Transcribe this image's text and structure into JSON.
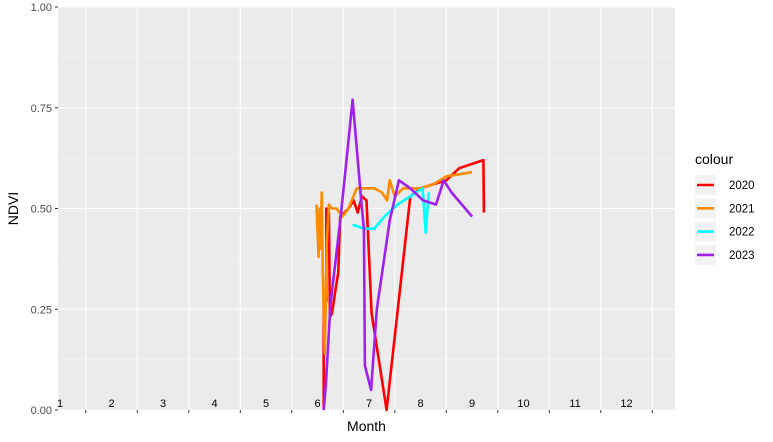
{
  "chart_data": {
    "type": "line",
    "xlabel": "Month",
    "ylabel": "NDVI",
    "xlim": [
      1,
      12
    ],
    "ylim": [
      0,
      1
    ],
    "y_ticks": [
      "0.00",
      "0.25",
      "0.50",
      "0.75",
      "1.00"
    ],
    "month_labels": [
      "1",
      "2",
      "3",
      "4",
      "5",
      "6",
      "7",
      "8",
      "9",
      "10",
      "11",
      "12"
    ],
    "grid": true,
    "legend_title": "colour",
    "legend_position": "right",
    "series": [
      {
        "name": "2020",
        "color": "#ff0000",
        "points": [
          [
            6.12,
            0.0
          ],
          [
            6.12,
            0.27
          ],
          [
            6.17,
            0.27
          ],
          [
            6.17,
            0.5
          ],
          [
            6.22,
            0.49
          ],
          [
            6.24,
            0.23
          ],
          [
            6.28,
            0.24
          ],
          [
            6.35,
            0.3
          ],
          [
            6.4,
            0.34
          ],
          [
            6.44,
            0.48
          ],
          [
            6.6,
            0.5
          ],
          [
            6.7,
            0.52
          ],
          [
            6.78,
            0.49
          ],
          [
            6.82,
            0.51
          ],
          [
            6.86,
            0.53
          ],
          [
            6.95,
            0.52
          ],
          [
            7.05,
            0.24
          ],
          [
            7.34,
            0.0
          ],
          [
            7.8,
            0.53
          ],
          [
            8.0,
            0.55
          ],
          [
            8.25,
            0.56
          ],
          [
            8.5,
            0.57
          ],
          [
            8.75,
            0.6
          ],
          [
            9.22,
            0.62
          ],
          [
            9.23,
            0.49
          ]
        ]
      },
      {
        "name": "2021",
        "color": "#ff8c00",
        "points": [
          [
            5.98,
            0.51
          ],
          [
            6.0,
            0.44
          ],
          [
            6.02,
            0.38
          ],
          [
            6.04,
            0.5
          ],
          [
            6.06,
            0.4
          ],
          [
            6.08,
            0.54
          ],
          [
            6.1,
            0.35
          ],
          [
            6.14,
            0.14
          ],
          [
            6.18,
            0.42
          ],
          [
            6.22,
            0.51
          ],
          [
            6.27,
            0.5
          ],
          [
            6.37,
            0.5
          ],
          [
            6.48,
            0.48
          ],
          [
            6.6,
            0.5
          ],
          [
            6.76,
            0.55
          ],
          [
            7.1,
            0.55
          ],
          [
            7.25,
            0.54
          ],
          [
            7.35,
            0.52
          ],
          [
            7.4,
            0.57
          ],
          [
            7.5,
            0.53
          ],
          [
            7.66,
            0.55
          ],
          [
            8.0,
            0.55
          ],
          [
            8.25,
            0.56
          ],
          [
            8.5,
            0.58
          ],
          [
            9.0,
            0.59
          ]
        ]
      },
      {
        "name": "2022",
        "color": "#00ffff",
        "points": [
          [
            6.68,
            0.46
          ],
          [
            6.9,
            0.45
          ],
          [
            7.1,
            0.45
          ],
          [
            7.3,
            0.48
          ],
          [
            7.55,
            0.51
          ],
          [
            7.8,
            0.53
          ],
          [
            8.04,
            0.55
          ],
          [
            8.1,
            0.44
          ],
          [
            8.16,
            0.54
          ]
        ]
      },
      {
        "name": "2023",
        "color": "#a020f0",
        "points": [
          [
            6.12,
            0.0
          ],
          [
            6.16,
            0.06
          ],
          [
            6.25,
            0.26
          ],
          [
            6.45,
            0.48
          ],
          [
            6.57,
            0.63
          ],
          [
            6.68,
            0.77
          ],
          [
            6.86,
            0.5
          ],
          [
            6.9,
            0.45
          ],
          [
            6.92,
            0.11
          ],
          [
            7.04,
            0.05
          ],
          [
            7.15,
            0.25
          ],
          [
            7.4,
            0.47
          ],
          [
            7.58,
            0.57
          ],
          [
            7.8,
            0.55
          ],
          [
            8.05,
            0.52
          ],
          [
            8.3,
            0.51
          ],
          [
            8.45,
            0.57
          ],
          [
            8.6,
            0.54
          ],
          [
            8.8,
            0.51
          ],
          [
            9.0,
            0.48
          ]
        ]
      }
    ]
  }
}
